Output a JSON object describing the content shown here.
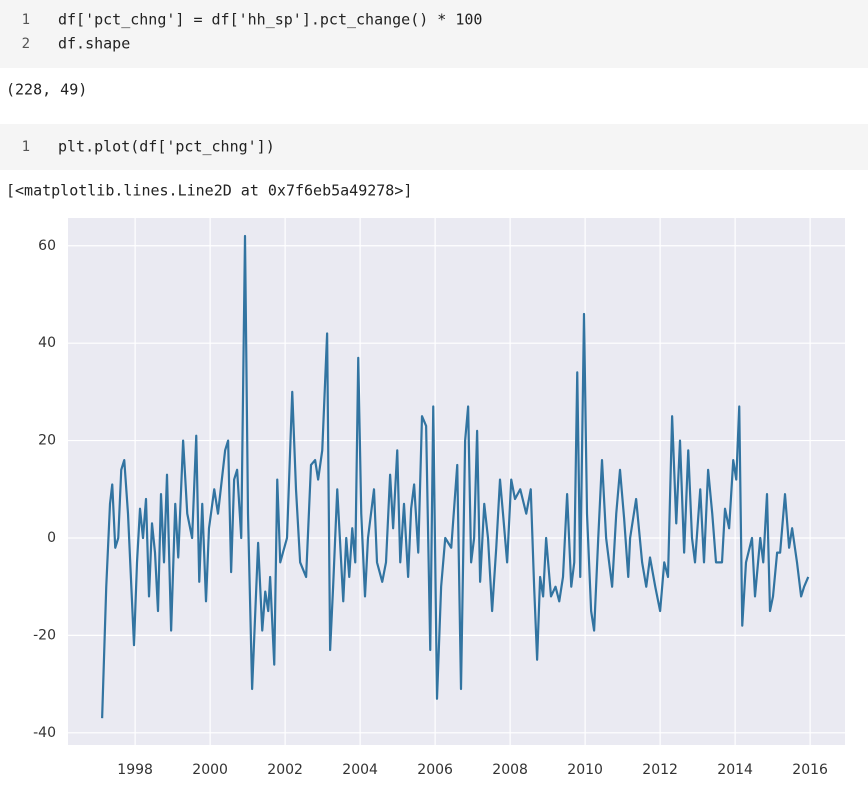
{
  "cells": [
    {
      "line_numbers": [
        "1",
        "2"
      ],
      "code": [
        "df['pct_chng'] = df['hh_sp'].pct_change() * 100",
        "df.shape"
      ],
      "output": "(228, 49)"
    },
    {
      "line_numbers": [
        "1"
      ],
      "code": [
        "plt.plot(df['pct_chng'])"
      ],
      "output": "[<matplotlib.lines.Line2D at 0x7f6eb5a49278>]"
    }
  ],
  "chart_data": {
    "type": "line",
    "grid": true,
    "background": "#eaeaf2",
    "xlim": [
      1996.21,
      2016.93
    ],
    "ylim": [
      -42.5,
      65.7
    ],
    "xticks": [
      1998,
      2000,
      2002,
      2004,
      2006,
      2008,
      2010,
      2012,
      2014,
      2016
    ],
    "yticks": [
      -40,
      -20,
      0,
      20,
      40,
      60
    ],
    "series": [
      {
        "color": "#3274a1",
        "x": [
          1997.12,
          1997.23,
          1997.33,
          1997.39,
          1997.47,
          1997.55,
          1997.63,
          1997.71,
          1997.81,
          1997.97,
          1998.05,
          1998.13,
          1998.21,
          1998.29,
          1998.37,
          1998.45,
          1998.53,
          1998.61,
          1998.69,
          1998.77,
          1998.85,
          1998.96,
          1999.07,
          1999.15,
          1999.28,
          1999.39,
          1999.52,
          1999.63,
          1999.71,
          1999.79,
          1999.89,
          1999.97,
          2000.11,
          2000.21,
          2000.4,
          2000.48,
          2000.56,
          2000.64,
          2000.72,
          2000.83,
          2000.93,
          2001.01,
          2001.12,
          2001.28,
          2001.39,
          2001.47,
          2001.55,
          2001.6,
          2001.71,
          2001.79,
          2001.87,
          2002.05,
          2002.19,
          2002.29,
          2002.4,
          2002.56,
          2002.69,
          2002.8,
          2002.88,
          2002.99,
          2003.12,
          2003.2,
          2003.28,
          2003.39,
          2003.55,
          2003.63,
          2003.71,
          2003.79,
          2003.87,
          2003.95,
          2004.03,
          2004.13,
          2004.21,
          2004.37,
          2004.45,
          2004.59,
          2004.69,
          2004.8,
          2004.88,
          2004.99,
          2005.07,
          2005.17,
          2005.28,
          2005.36,
          2005.44,
          2005.55,
          2005.65,
          2005.76,
          2005.87,
          2005.95,
          2006.05,
          2006.16,
          2006.27,
          2006.43,
          2006.59,
          2006.69,
          2006.8,
          2006.88,
          2006.96,
          2007.04,
          2007.12,
          2007.2,
          2007.31,
          2007.41,
          2007.52,
          2007.63,
          2007.73,
          2007.81,
          2007.92,
          2008.03,
          2008.13,
          2008.27,
          2008.43,
          2008.55,
          2008.64,
          2008.72,
          2008.8,
          2008.88,
          2008.96,
          2009.09,
          2009.21,
          2009.31,
          2009.41,
          2009.52,
          2009.63,
          2009.71,
          2009.79,
          2009.87,
          2009.97,
          2010.05,
          2010.16,
          2010.24,
          2010.35,
          2010.45,
          2010.56,
          2010.72,
          2010.83,
          2010.93,
          2011.04,
          2011.15,
          2011.2,
          2011.36,
          2011.52,
          2011.63,
          2011.73,
          2011.87,
          2012.0,
          2012.11,
          2012.21,
          2012.32,
          2012.43,
          2012.53,
          2012.64,
          2012.75,
          2012.85,
          2012.93,
          2013.07,
          2013.17,
          2013.28,
          2013.39,
          2013.49,
          2013.65,
          2013.73,
          2013.84,
          2013.95,
          2014.03,
          2014.11,
          2014.19,
          2014.29,
          2014.45,
          2014.53,
          2014.67,
          2014.75,
          2014.85,
          2014.93,
          2015.01,
          2015.12,
          2015.2,
          2015.33,
          2015.44,
          2015.52,
          2015.65,
          2015.76,
          2015.84,
          2015.95
        ],
        "values": [
          -37,
          -10,
          7,
          11,
          -2,
          0,
          14,
          16,
          5,
          -22,
          -5,
          6,
          0,
          8,
          -12,
          3,
          -3,
          -15,
          9,
          -5,
          13,
          -19,
          7,
          -4,
          20,
          5,
          0,
          21,
          -9,
          7,
          -13,
          2,
          10,
          5,
          18,
          20,
          -7,
          12,
          14,
          0,
          62,
          5,
          -31,
          -1,
          -19,
          -11,
          -15,
          -8,
          -26,
          12,
          -5,
          0,
          30,
          10,
          -5,
          -8,
          15,
          16,
          12,
          18,
          42,
          -23,
          -10,
          10,
          -13,
          0,
          -8,
          2,
          -5,
          37,
          5,
          -12,
          0,
          10,
          -5,
          -9,
          -5,
          13,
          2,
          18,
          -5,
          7,
          -8,
          6,
          11,
          -3,
          25,
          23,
          -23,
          27,
          -33,
          -10,
          0,
          -2,
          15,
          -31,
          20,
          27,
          -5,
          0,
          22,
          -9,
          7,
          0,
          -15,
          -2,
          12,
          5,
          -5,
          12,
          8,
          10,
          5,
          10,
          -10,
          -25,
          -8,
          -12,
          0,
          -12,
          -10,
          -13,
          -8,
          9,
          -10,
          -5,
          34,
          -8,
          46,
          5,
          -15,
          -19,
          0,
          16,
          0,
          -10,
          5,
          14,
          4,
          -8,
          0,
          8,
          -5,
          -10,
          -4,
          -10,
          -15,
          -5,
          -8,
          25,
          3,
          20,
          -3,
          18,
          0,
          -5,
          10,
          -5,
          14,
          5,
          -5,
          -5,
          6,
          2,
          16,
          12,
          27,
          -18,
          -5,
          0,
          -12,
          0,
          -5,
          9,
          -15,
          -12,
          -3,
          -3,
          9,
          -2,
          2,
          -5,
          -12,
          -10,
          -8
        ]
      }
    ]
  }
}
